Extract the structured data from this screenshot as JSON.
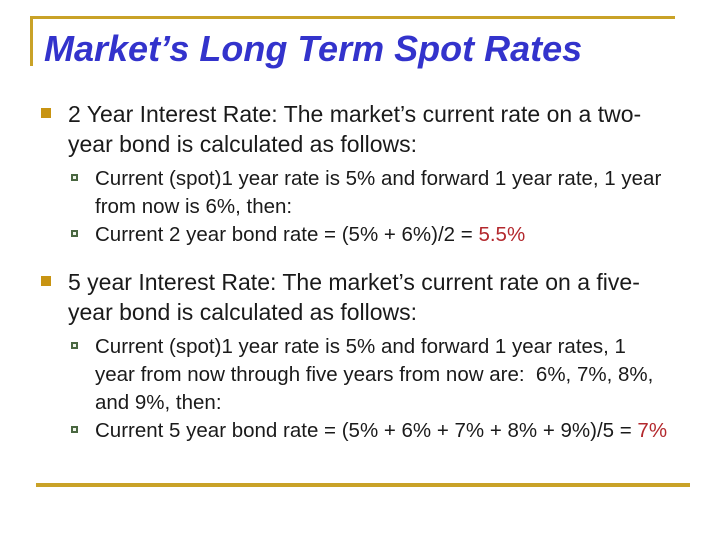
{
  "slide": {
    "title": "Market’s Long Term Spot Rates",
    "bullets": [
      {
        "level": 1,
        "text": "2 Year Interest Rate: The market’s current rate on a two-year bond is calculated as follows:"
      },
      {
        "level": 2,
        "text": "Current (spot)1 year rate is 5% and forward 1 year rate, 1 year from now is 6%, then:"
      },
      {
        "level": 2,
        "text": "Current 2 year bond rate = (5% + 6%)/2 = ",
        "highlight": "5.5%"
      },
      {
        "level": 1,
        "text": "5 year Interest Rate: The market’s current rate on a five-year bond is calculated as follows:"
      },
      {
        "level": 2,
        "text": "Current (spot)1 year rate is 5% and forward 1 year rates, 1 year from now through five years from now are:  6%, 7%, 8%, and 9%, then:"
      },
      {
        "level": 2,
        "text": "Current 5 year bond rate = (5% + 6% + 7% + 8% + 9%)/5 = ",
        "highlight": "7%"
      }
    ],
    "colors": {
      "title_blue": "#3333CC",
      "accent_gold": "#C9A227",
      "bullet_gold": "#C89412",
      "sub_bullet_green": "#4A6741",
      "body_text": "#1A1A1A",
      "highlight_red": "#B3282D",
      "background": "#FFFFFF"
    }
  }
}
